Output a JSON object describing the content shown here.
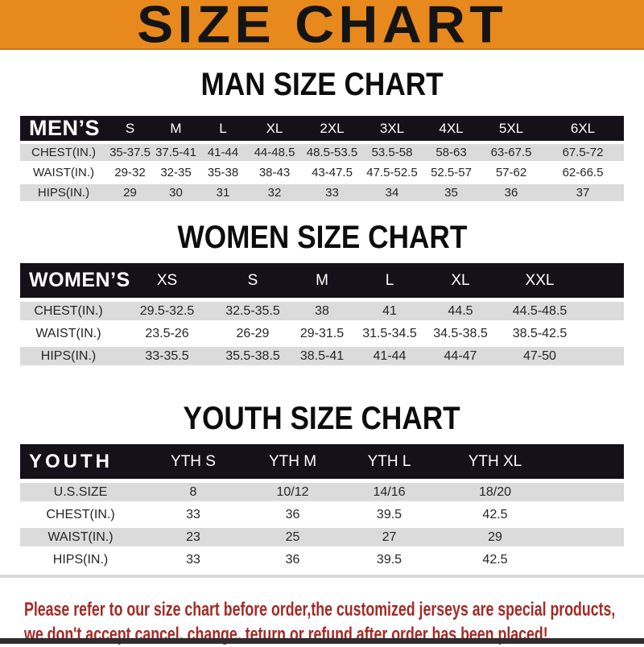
{
  "banner": {
    "title": "SIZE CHART",
    "bg_color": "#E8891E",
    "text_color": "#141414"
  },
  "sections": [
    {
      "id": "mens",
      "heading": "MAN SIZE CHART",
      "corner_label": "MEN’S",
      "columns": [
        "S",
        "M",
        "L",
        "XL",
        "2XL",
        "3XL",
        "4XL",
        "5XL",
        "6XL"
      ],
      "rows": [
        {
          "label": "CHEST(IN.)",
          "values": [
            "35-37.5",
            "37.5-41",
            "41-44",
            "44-48.5",
            "48.5-53.5",
            "53.5-58",
            "58-63",
            "63-67.5",
            "67.5-72"
          ]
        },
        {
          "label": "WAIST(IN.)",
          "values": [
            "29-32",
            "32-35",
            "35-38",
            "38-43",
            "43-47.5",
            "47.5-52.5",
            "52.5-57",
            "57-62",
            "62-66.5"
          ]
        },
        {
          "label": "HIPS(IN.)",
          "values": [
            "29",
            "30",
            "31",
            "32",
            "33",
            "34",
            "35",
            "36",
            "37"
          ]
        }
      ]
    },
    {
      "id": "womens",
      "heading": "WOMEN SIZE CHART",
      "corner_label": "WOMEN’S",
      "columns": [
        "XS",
        "S",
        "M",
        "L",
        "XL",
        "XXL"
      ],
      "rows": [
        {
          "label": "CHEST(IN.)",
          "values": [
            "29.5-32.5",
            "32.5-35.5",
            "38",
            "41",
            "44.5",
            "44.5-48.5"
          ]
        },
        {
          "label": "WAIST(IN.)",
          "values": [
            "23.5-26",
            "26-29",
            "29-31.5",
            "31.5-34.5",
            "34.5-38.5",
            "38.5-42.5"
          ]
        },
        {
          "label": "HIPS(IN.)",
          "values": [
            "33-35.5",
            "35.5-38.5",
            "38.5-41",
            "41-44",
            "44-47",
            "47-50"
          ]
        }
      ]
    },
    {
      "id": "youth",
      "heading": "YOUTH SIZE CHART",
      "corner_label": "YOUTH",
      "columns": [
        "YTH S",
        "YTH M",
        "YTH L",
        "YTH XL"
      ],
      "rows": [
        {
          "label": "U.S.SIZE",
          "values": [
            "8",
            "10/12",
            "14/16",
            "18/20"
          ]
        },
        {
          "label": "CHEST(IN.)",
          "values": [
            "33",
            "36",
            "39.5",
            "42.5"
          ]
        },
        {
          "label": "WAIST(IN.)",
          "values": [
            "23",
            "25",
            "27",
            "29"
          ]
        },
        {
          "label": "HIPS(IN.)",
          "values": [
            "33",
            "36",
            "39.5",
            "42.5"
          ]
        }
      ]
    }
  ],
  "footer": {
    "line1": "Please refer to our size chart before order,the customized jerseys are special products,",
    "line2": "we don't accept cancel, change, teturn or refund after order has been placed!",
    "text_color": "#A32A26"
  },
  "colors": {
    "header_bar": "#151118",
    "row_stripe": "#DBDBDB",
    "bottom_bar": "#312D2E"
  }
}
